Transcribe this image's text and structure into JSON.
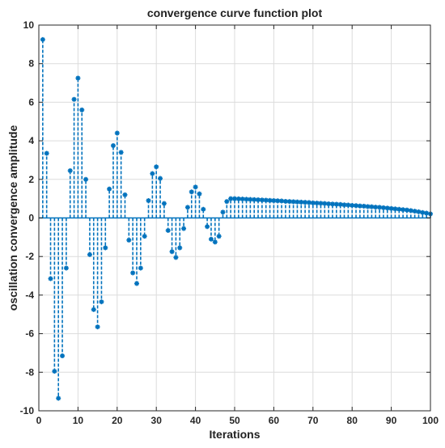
{
  "chart_data": {
    "type": "stem",
    "title": "convergence curve function plot",
    "xlabel": "Iterations",
    "ylabel": "oscillation convergence amplitude",
    "xlim": [
      0,
      100
    ],
    "ylim": [
      -10,
      10
    ],
    "xticks": [
      0,
      10,
      20,
      30,
      40,
      50,
      60,
      70,
      80,
      90,
      100
    ],
    "yticks": [
      -10,
      -8,
      -6,
      -4,
      -2,
      0,
      2,
      4,
      6,
      8,
      10
    ],
    "grid": true,
    "legend": "none",
    "colors": {
      "stem": "#0072BD",
      "axes": "#262626",
      "grid": "#dcdcdc"
    },
    "line_style": "dashed",
    "marker": "asterisk",
    "x": [
      1,
      2,
      3,
      4,
      5,
      6,
      7,
      8,
      9,
      10,
      11,
      12,
      13,
      14,
      15,
      16,
      17,
      18,
      19,
      20,
      21,
      22,
      23,
      24,
      25,
      26,
      27,
      28,
      29,
      30,
      31,
      32,
      33,
      34,
      35,
      36,
      37,
      38,
      39,
      40,
      41,
      42,
      43,
      44,
      45,
      46,
      47,
      48,
      49,
      50,
      51,
      52,
      53,
      54,
      55,
      56,
      57,
      58,
      59,
      60,
      61,
      62,
      63,
      64,
      65,
      66,
      67,
      68,
      69,
      70,
      71,
      72,
      73,
      74,
      75,
      76,
      77,
      78,
      79,
      80,
      81,
      82,
      83,
      84,
      85,
      86,
      87,
      88,
      89,
      90,
      91,
      92,
      93,
      94,
      95,
      96,
      97,
      98,
      99,
      100
    ],
    "y": [
      9.25,
      3.35,
      -3.15,
      -7.95,
      -9.35,
      -7.15,
      -2.6,
      2.45,
      6.15,
      7.25,
      5.6,
      2.0,
      -1.9,
      -4.75,
      -5.65,
      -4.35,
      -1.55,
      1.5,
      3.75,
      4.4,
      3.4,
      1.2,
      -1.15,
      -2.85,
      -3.4,
      -2.6,
      -0.95,
      0.9,
      2.3,
      2.65,
      2.05,
      0.75,
      -0.65,
      -1.75,
      -2.05,
      -1.55,
      -0.55,
      0.55,
      1.35,
      1.6,
      1.25,
      0.45,
      -0.45,
      -1.1,
      -1.25,
      -0.95,
      0.3,
      0.85,
      1.0,
      1.0,
      0.99,
      0.98,
      0.97,
      0.96,
      0.95,
      0.94,
      0.93,
      0.92,
      0.91,
      0.9,
      0.89,
      0.88,
      0.86,
      0.85,
      0.84,
      0.83,
      0.82,
      0.81,
      0.8,
      0.78,
      0.77,
      0.76,
      0.75,
      0.73,
      0.72,
      0.71,
      0.7,
      0.68,
      0.67,
      0.65,
      0.64,
      0.62,
      0.61,
      0.59,
      0.58,
      0.56,
      0.55,
      0.53,
      0.51,
      0.49,
      0.47,
      0.45,
      0.43,
      0.41,
      0.38,
      0.35,
      0.32,
      0.28,
      0.25,
      0.21
    ]
  }
}
